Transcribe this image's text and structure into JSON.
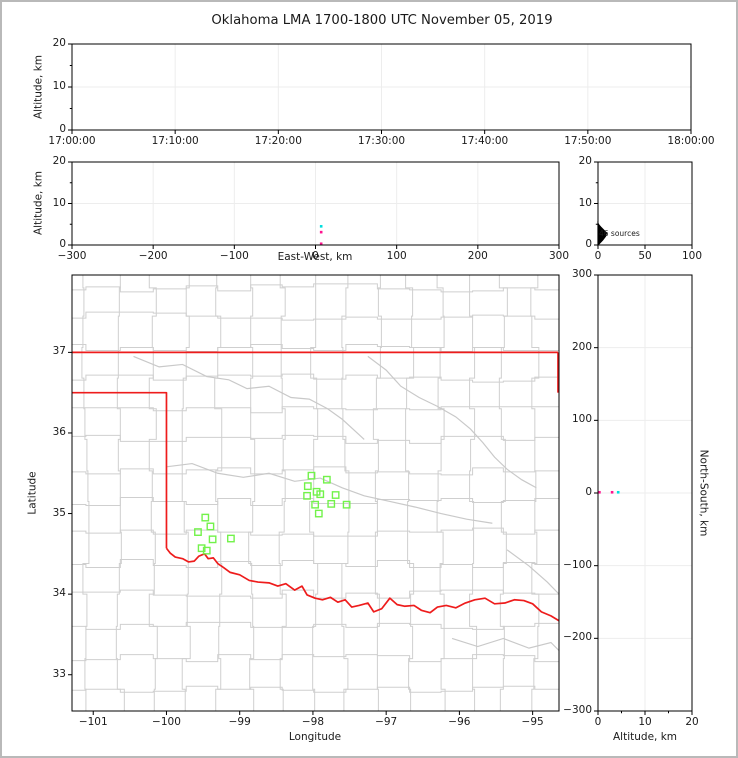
{
  "title": "Oklahoma LMA 1700-1800 UTC November 05, 2019",
  "colors": {
    "early_source": "#00dede",
    "late_source": "#ff1490",
    "station": "#72f24a",
    "state_border": "#ee1c1c",
    "county_line": "#cfcfcf",
    "river_line": "#c9c9c9",
    "gridline": "#ededed",
    "histogram": "#000000",
    "axis": "#000000",
    "frame_border": "#b9b9b9"
  },
  "chart_data": [
    {
      "id": "time_height",
      "type": "scatter",
      "ylabel": "Altitude, km",
      "xlim": [
        0,
        3600
      ],
      "ylim": [
        0,
        20
      ],
      "xtick_values": [
        0,
        600,
        1200,
        1800,
        2400,
        3000,
        3600
      ],
      "xtick_labels": [
        "17:00:00",
        "17:10:00",
        "17:20:00",
        "17:30:00",
        "17:40:00",
        "17:50:00",
        "18:00:00"
      ],
      "ytick_values": [
        0,
        10,
        20
      ],
      "ytick_labels": [
        "0",
        "10",
        "20"
      ],
      "grid": true,
      "points": []
    },
    {
      "id": "ew_height",
      "type": "scatter",
      "xlabel": "East-West, km",
      "ylabel": "Altitude, km",
      "xlim": [
        -300,
        300
      ],
      "ylim": [
        0,
        20
      ],
      "xtick_values": [
        -300,
        -200,
        -100,
        0,
        100,
        200,
        300
      ],
      "xtick_labels": [
        "−300",
        "−200",
        "−100",
        "0",
        "100",
        "200",
        "300"
      ],
      "ytick_values": [
        0,
        10,
        20
      ],
      "ytick_labels": [
        "0",
        "10",
        "20"
      ],
      "grid": true,
      "points": [
        {
          "x": 7,
          "y": 0.3,
          "color_key": "late_source"
        },
        {
          "x": 7,
          "y": 3.1,
          "color_key": "late_source"
        },
        {
          "x": 7,
          "y": 4.5,
          "color_key": "early_source"
        }
      ]
    },
    {
      "id": "altitude_histogram",
      "type": "line",
      "annotation": "46 sources",
      "xlim": [
        0,
        100
      ],
      "ylim": [
        0,
        20
      ],
      "xtick_values": [
        0,
        50,
        100
      ],
      "xtick_labels": [
        "0",
        "50",
        "100"
      ],
      "ytick_values": [
        0,
        10,
        20
      ],
      "ytick_labels": [
        "0",
        "10",
        "20"
      ],
      "grid": true,
      "curve_count_vs_alt": [
        [
          0,
          0
        ],
        [
          2,
          0.5
        ],
        [
          5,
          1.2
        ],
        [
          8,
          2.1
        ],
        [
          9,
          2.9
        ],
        [
          6,
          3.6
        ],
        [
          3,
          4.3
        ],
        [
          1,
          4.8
        ],
        [
          0,
          5.2
        ]
      ]
    },
    {
      "id": "plan_view_map",
      "type": "map",
      "xlabel": "Longitude",
      "ylabel": "Latitude",
      "xlim": [
        -101.29,
        -94.64
      ],
      "ylim": [
        32.55,
        37.96
      ],
      "xtick_values": [
        -101,
        -100,
        -99,
        -98,
        -97,
        -96,
        -95
      ],
      "xtick_labels": [
        "−101",
        "−100",
        "−99",
        "−98",
        "−97",
        "−96",
        "−95"
      ],
      "ytick_values": [
        33,
        34,
        35,
        36,
        37
      ],
      "ytick_labels": [
        "33",
        "34",
        "35",
        "36",
        "37"
      ],
      "grid": false,
      "stations": [
        [
          -99.47,
          34.95
        ],
        [
          -99.4,
          34.84
        ],
        [
          -99.57,
          34.77
        ],
        [
          -99.37,
          34.68
        ],
        [
          -99.12,
          34.69
        ],
        [
          -99.52,
          34.57
        ],
        [
          -99.45,
          34.54
        ],
        [
          -98.02,
          35.47
        ],
        [
          -97.81,
          35.42
        ],
        [
          -98.07,
          35.34
        ],
        [
          -97.95,
          35.27
        ],
        [
          -97.9,
          35.24
        ],
        [
          -98.08,
          35.22
        ],
        [
          -97.69,
          35.23
        ],
        [
          -97.97,
          35.11
        ],
        [
          -97.75,
          35.12
        ],
        [
          -97.54,
          35.11
        ],
        [
          -97.92,
          35.0
        ]
      ],
      "state_border_segments": [
        [
          [
            -101.29,
            37.0
          ],
          [
            -94.64,
            37.0
          ]
        ],
        [
          [
            -94.64,
            37.0
          ],
          [
            -94.64,
            36.5
          ]
        ],
        [
          [
            -101.29,
            36.5
          ],
          [
            -100.0,
            36.5
          ],
          [
            -100.0,
            34.57
          ]
        ]
      ],
      "red_river": [
        [
          -100.0,
          34.57
        ],
        [
          -99.95,
          34.51
        ],
        [
          -99.88,
          34.46
        ],
        [
          -99.78,
          34.44
        ],
        [
          -99.7,
          34.4
        ],
        [
          -99.62,
          34.41
        ],
        [
          -99.56,
          34.47
        ],
        [
          -99.48,
          34.5
        ],
        [
          -99.43,
          34.44
        ],
        [
          -99.36,
          34.45
        ],
        [
          -99.3,
          34.38
        ],
        [
          -99.22,
          34.33
        ],
        [
          -99.13,
          34.27
        ],
        [
          -99.0,
          34.24
        ],
        [
          -98.87,
          34.17
        ],
        [
          -98.75,
          34.15
        ],
        [
          -98.6,
          34.14
        ],
        [
          -98.48,
          34.1
        ],
        [
          -98.37,
          34.13
        ],
        [
          -98.25,
          34.05
        ],
        [
          -98.15,
          34.1
        ],
        [
          -98.08,
          33.99
        ],
        [
          -97.97,
          33.95
        ],
        [
          -97.87,
          33.93
        ],
        [
          -97.76,
          33.96
        ],
        [
          -97.66,
          33.9
        ],
        [
          -97.56,
          33.93
        ],
        [
          -97.47,
          33.84
        ],
        [
          -97.37,
          33.86
        ],
        [
          -97.25,
          33.89
        ],
        [
          -97.17,
          33.78
        ],
        [
          -97.06,
          33.82
        ],
        [
          -96.95,
          33.95
        ],
        [
          -96.85,
          33.87
        ],
        [
          -96.75,
          33.85
        ],
        [
          -96.62,
          33.86
        ],
        [
          -96.52,
          33.8
        ],
        [
          -96.4,
          33.77
        ],
        [
          -96.3,
          33.84
        ],
        [
          -96.18,
          33.86
        ],
        [
          -96.05,
          33.83
        ],
        [
          -95.92,
          33.89
        ],
        [
          -95.79,
          33.93
        ],
        [
          -95.65,
          33.95
        ],
        [
          -95.52,
          33.88
        ],
        [
          -95.38,
          33.89
        ],
        [
          -95.25,
          33.93
        ],
        [
          -95.12,
          33.92
        ],
        [
          -95.0,
          33.88
        ],
        [
          -94.88,
          33.78
        ],
        [
          -94.75,
          33.73
        ],
        [
          -94.64,
          33.67
        ]
      ],
      "rivers": [
        [
          [
            -100.45,
            36.95
          ],
          [
            -100.1,
            36.82
          ],
          [
            -99.78,
            36.85
          ],
          [
            -99.45,
            36.7
          ],
          [
            -99.15,
            36.66
          ],
          [
            -98.9,
            36.55
          ],
          [
            -98.6,
            36.58
          ],
          [
            -98.3,
            36.44
          ],
          [
            -98.05,
            36.42
          ],
          [
            -97.8,
            36.3
          ],
          [
            -97.6,
            36.17
          ],
          [
            -97.42,
            36.02
          ],
          [
            -97.3,
            35.92
          ]
        ],
        [
          [
            -97.25,
            36.95
          ],
          [
            -97.0,
            36.78
          ],
          [
            -96.8,
            36.58
          ],
          [
            -96.55,
            36.44
          ],
          [
            -96.3,
            36.33
          ],
          [
            -96.05,
            36.2
          ],
          [
            -95.85,
            36.05
          ],
          [
            -95.68,
            35.88
          ],
          [
            -95.52,
            35.7
          ],
          [
            -95.35,
            35.55
          ],
          [
            -95.15,
            35.42
          ],
          [
            -94.95,
            35.32
          ]
        ],
        [
          [
            -100.0,
            35.58
          ],
          [
            -99.65,
            35.62
          ],
          [
            -99.3,
            35.5
          ],
          [
            -98.95,
            35.45
          ],
          [
            -98.6,
            35.5
          ],
          [
            -98.25,
            35.4
          ],
          [
            -97.9,
            35.44
          ],
          [
            -97.6,
            35.32
          ],
          [
            -97.3,
            35.22
          ],
          [
            -96.95,
            35.15
          ],
          [
            -96.6,
            35.08
          ],
          [
            -96.25,
            35.0
          ],
          [
            -95.9,
            34.93
          ],
          [
            -95.55,
            34.88
          ]
        ],
        [
          [
            -96.1,
            33.45
          ],
          [
            -95.75,
            33.35
          ],
          [
            -95.4,
            33.45
          ],
          [
            -95.05,
            33.33
          ],
          [
            -94.75,
            33.4
          ],
          [
            -94.64,
            33.3
          ]
        ],
        [
          [
            -95.35,
            34.55
          ],
          [
            -95.05,
            34.35
          ],
          [
            -94.8,
            34.15
          ],
          [
            -94.64,
            34.0
          ]
        ]
      ],
      "county_lons": [
        -101.1,
        -100.63,
        -100.18,
        -99.73,
        -99.3,
        -98.85,
        -98.42,
        -97.99,
        -97.55,
        -97.12,
        -96.68,
        -96.25,
        -95.82,
        -95.4,
        -94.97
      ],
      "county_lats": [
        32.82,
        33.2,
        33.6,
        34.0,
        34.38,
        34.77,
        35.15,
        35.53,
        35.92,
        36.3,
        36.68,
        37.06,
        37.45,
        37.8
      ]
    },
    {
      "id": "ns_height",
      "type": "scatter",
      "xlabel": "Altitude, km",
      "ylabel": "North-South, km",
      "xlim": [
        0,
        20
      ],
      "ylim": [
        -300,
        300
      ],
      "xtick_values": [
        0,
        10,
        20
      ],
      "xtick_labels": [
        "0",
        "10",
        "20"
      ],
      "ytick_values": [
        300,
        200,
        100,
        0,
        -100,
        -200,
        -300
      ],
      "ytick_labels": [
        "300",
        "200",
        "100",
        "0",
        "−100",
        "−200",
        "−300"
      ],
      "grid": true,
      "points": [
        {
          "x": 0.3,
          "y": 1,
          "color_key": "late_source"
        },
        {
          "x": 3.0,
          "y": 1,
          "color_key": "late_source"
        },
        {
          "x": 4.3,
          "y": 1,
          "color_key": "early_source"
        }
      ]
    }
  ]
}
